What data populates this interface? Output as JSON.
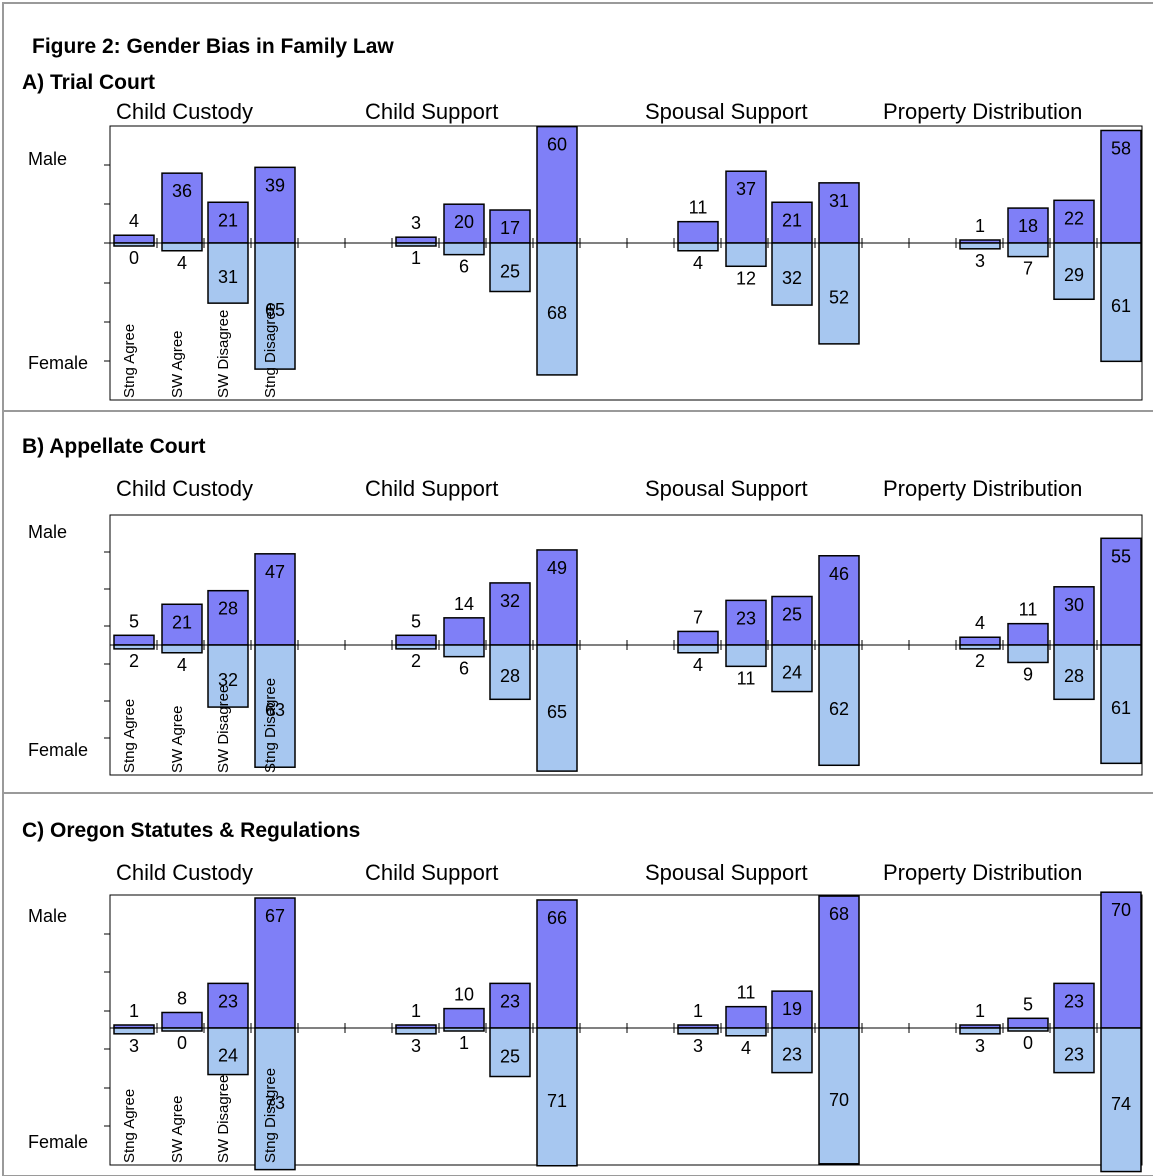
{
  "title": "Figure 2:  Gender Bias in Family Law",
  "y_labels": {
    "top": "Male",
    "bottom": "Female"
  },
  "colors": {
    "male": "#7f7ff7",
    "female": "#a7c7f0"
  },
  "chart_data": [
    {
      "type": "bar",
      "title": "A) Trial Court",
      "groups": [
        "Child Custody",
        "Child Support",
        "Spousal Support",
        "Property Distribution"
      ],
      "categories": [
        "Stng Agree",
        "SW Agree",
        "SW Disagree",
        "Stng Disagree"
      ],
      "series": [
        {
          "name": "Male",
          "values": [
            [
              4,
              36,
              21,
              39
            ],
            [
              3,
              20,
              17,
              60
            ],
            [
              11,
              37,
              21,
              31
            ],
            [
              1,
              18,
              22,
              58
            ]
          ]
        },
        {
          "name": "Female",
          "values": [
            [
              0,
              4,
              31,
              65
            ],
            [
              1,
              6,
              25,
              68
            ],
            [
              4,
              12,
              32,
              52
            ],
            [
              3,
              7,
              29,
              61
            ]
          ]
        }
      ]
    },
    {
      "type": "bar",
      "title": "B) Appellate Court",
      "groups": [
        "Child Custody",
        "Child Support",
        "Spousal Support",
        "Property Distribution"
      ],
      "categories": [
        "Stng Agree",
        "SW Agree",
        "SW Disagree",
        "Stng Disagree"
      ],
      "series": [
        {
          "name": "Male",
          "values": [
            [
              5,
              21,
              28,
              47
            ],
            [
              5,
              14,
              32,
              49
            ],
            [
              7,
              23,
              25,
              46
            ],
            [
              4,
              11,
              30,
              55
            ]
          ]
        },
        {
          "name": "Female",
          "values": [
            [
              2,
              4,
              32,
              63
            ],
            [
              2,
              6,
              28,
              65
            ],
            [
              4,
              11,
              24,
              62
            ],
            [
              2,
              9,
              28,
              61
            ]
          ]
        }
      ]
    },
    {
      "type": "bar",
      "title": "C) Oregon Statutes & Regulations",
      "groups": [
        "Child Custody",
        "Child Support",
        "Spousal Support",
        "Property Distribution"
      ],
      "categories": [
        "Stng Agree",
        "SW Agree",
        "SW Disagree",
        "Stng Disagree"
      ],
      "series": [
        {
          "name": "Male",
          "values": [
            [
              1,
              8,
              23,
              67
            ],
            [
              1,
              10,
              23,
              66
            ],
            [
              1,
              11,
              19,
              68
            ],
            [
              1,
              5,
              23,
              70
            ]
          ]
        },
        {
          "name": "Female",
          "values": [
            [
              3,
              0,
              24,
              73
            ],
            [
              3,
              1,
              25,
              71
            ],
            [
              3,
              4,
              23,
              70
            ],
            [
              3,
              0,
              23,
              74
            ]
          ]
        }
      ]
    }
  ]
}
